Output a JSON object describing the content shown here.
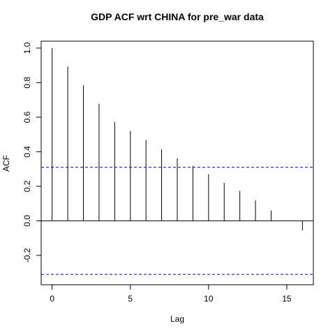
{
  "chart_data": {
    "type": "bar",
    "title": "GDP ACF wrt CHINA for pre_war data",
    "xlabel": "Lag",
    "ylabel": "ACF",
    "x": [
      0,
      1,
      2,
      3,
      4,
      5,
      6,
      7,
      8,
      9,
      10,
      11,
      12,
      13,
      14,
      15,
      16
    ],
    "values": [
      1.0,
      0.893,
      0.785,
      0.678,
      0.573,
      0.52,
      0.468,
      0.415,
      0.362,
      0.318,
      0.27,
      0.22,
      0.173,
      0.118,
      0.06,
      0.0,
      -0.055
    ],
    "xlim": [
      -0.7,
      16.7
    ],
    "ylim": [
      -0.37,
      1.04
    ],
    "xticks": [
      0,
      5,
      10,
      15
    ],
    "yticks": [
      -0.2,
      0.0,
      0.2,
      0.4,
      0.6,
      0.8,
      1.0
    ],
    "ytick_labels": [
      "-0.2",
      "0.0",
      "0.2",
      "0.4",
      "0.6",
      "0.8",
      "1.0"
    ],
    "confidence_band": [
      0.31,
      -0.31
    ],
    "zero_line": 0.0,
    "grid": false,
    "colors": {
      "bars": "#000000",
      "confidence": "#0000cc",
      "frame": "#000000"
    }
  }
}
